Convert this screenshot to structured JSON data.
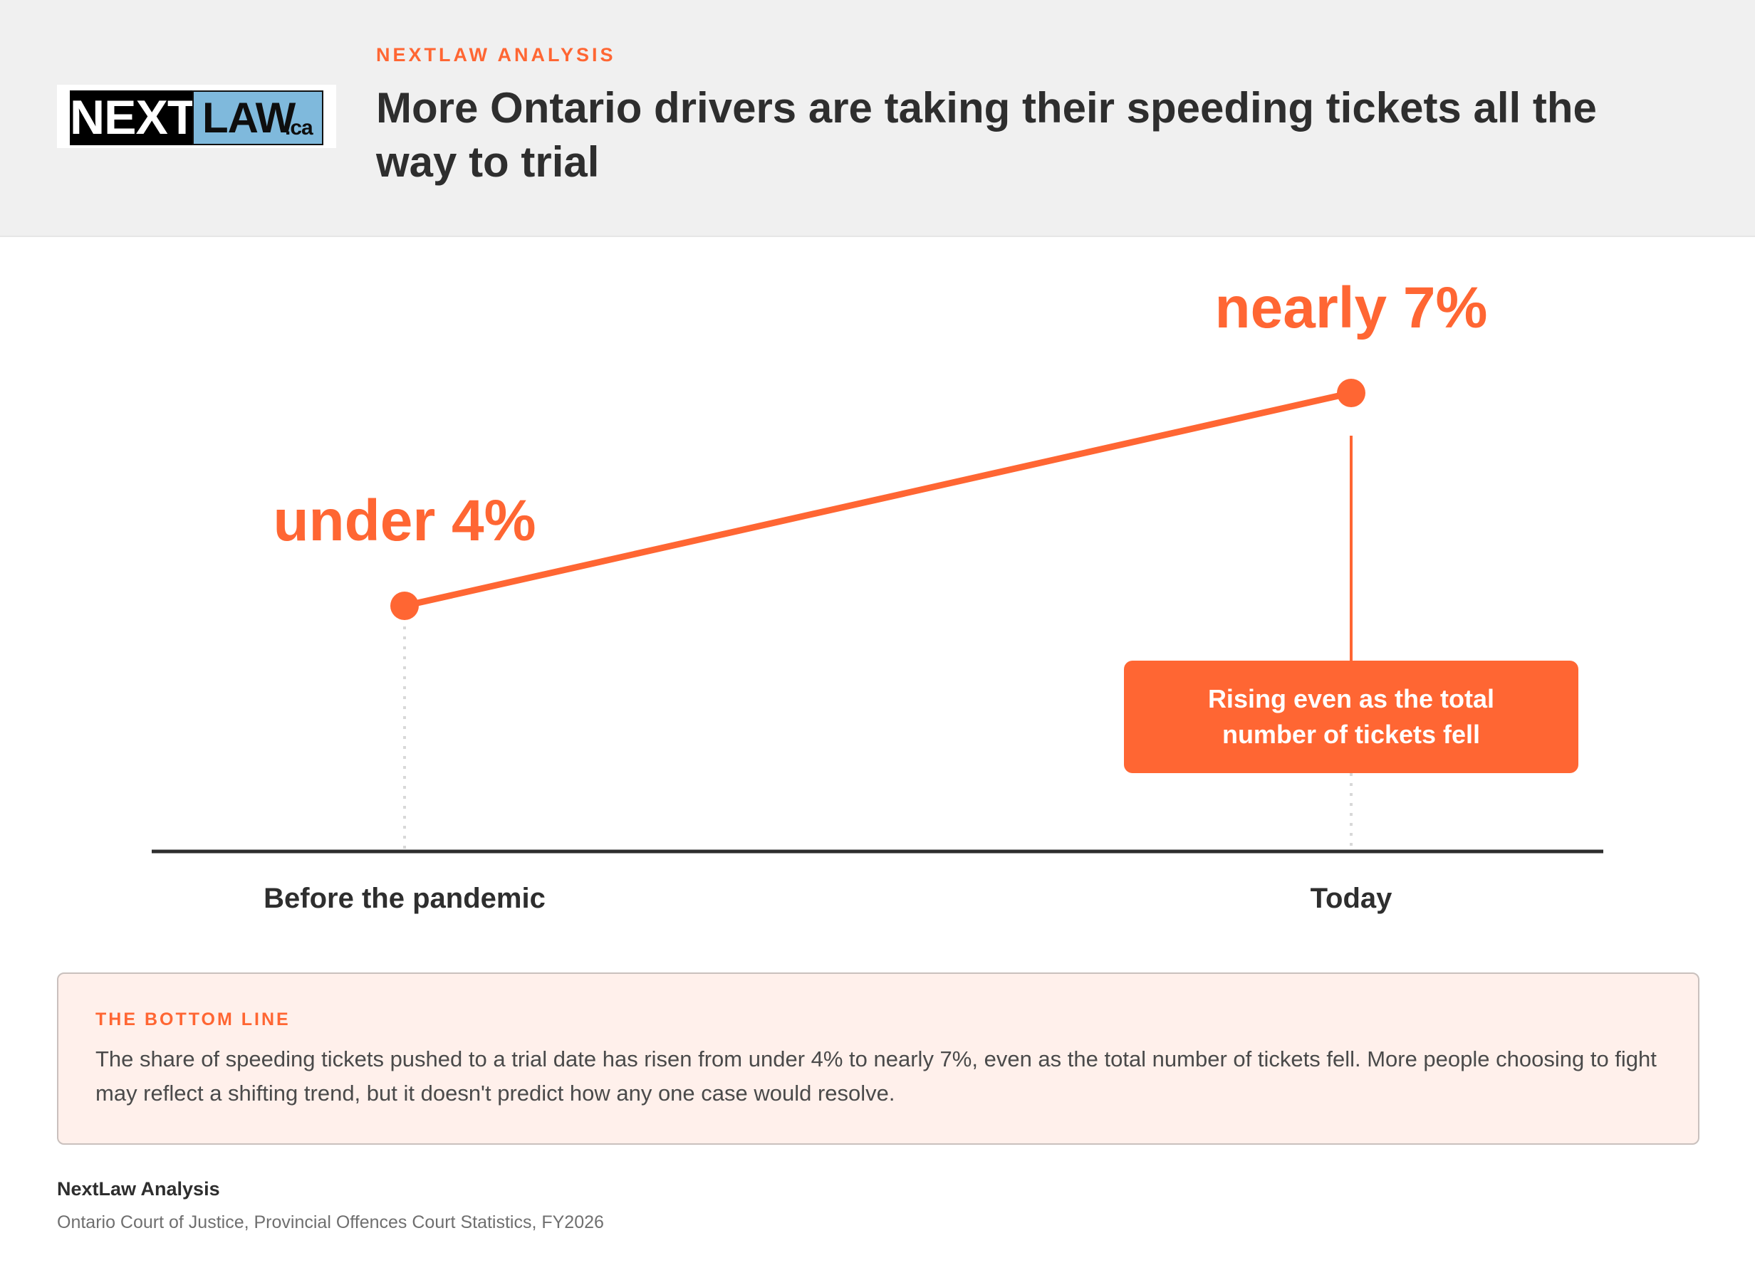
{
  "header": {
    "kicker": "NEXTLAW ANALYSIS",
    "title": "More Ontario drivers are taking their speeding tickets all the way to trial",
    "logo": {
      "part1": "NEXT",
      "part2": "LAW",
      "suffix": ".ca"
    }
  },
  "colors": {
    "accent": "#ff6633",
    "text": "#2e2e2e",
    "header_bg": "#f0f0f0",
    "box_bg": "#fff0eb"
  },
  "chart_data": {
    "type": "line",
    "categories": [
      "Before the pandemic",
      "Today"
    ],
    "values": [
      4,
      7
    ],
    "value_labels": [
      "under 4%",
      "nearly 7%"
    ],
    "annotation": "Rising even as the total number of tickets fell",
    "ylabel": "",
    "xlabel": "",
    "grid": false
  },
  "bottom_line": {
    "label": "THE BOTTOM LINE",
    "text": "The share of speeding tickets pushed to a trial date has risen from under 4% to nearly 7%, even as the total number of tickets fell. More people choosing to fight may reflect a shifting trend, but it doesn't predict how any one case would resolve."
  },
  "footer": {
    "title": "NextLaw Analysis",
    "source": "Ontario Court of Justice, Provincial Offences Court Statistics, FY2026"
  }
}
